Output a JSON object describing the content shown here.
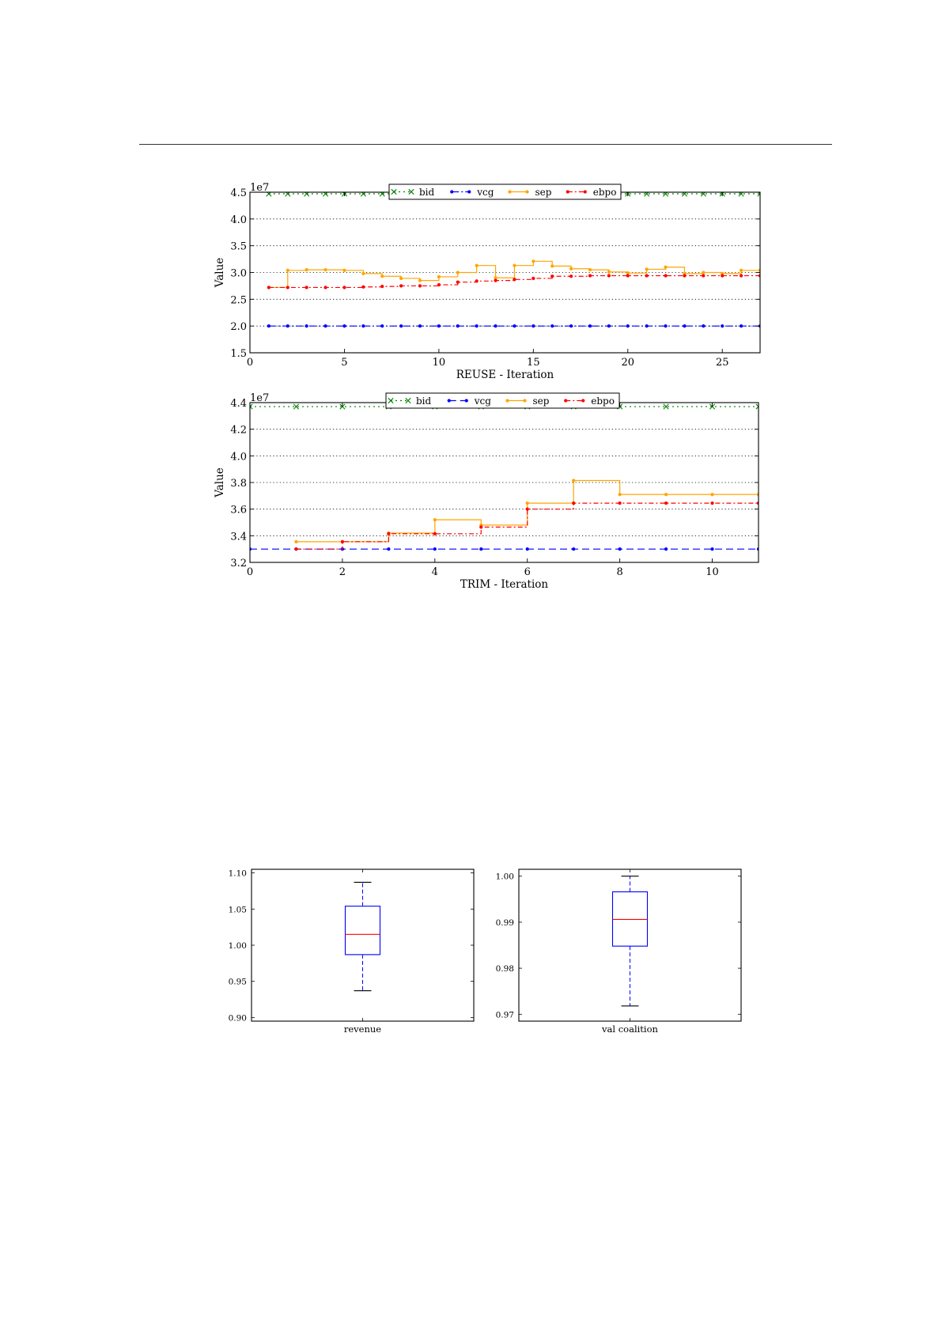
{
  "chart_data": [
    {
      "type": "line",
      "title": "",
      "xlabel": "REUSE - Iteration",
      "ylabel": "Value",
      "y_offset_label": "1e7",
      "xlim": [
        0,
        27
      ],
      "ylim": [
        1.5,
        4.5
      ],
      "xticks": [
        0,
        5,
        10,
        15,
        20,
        25
      ],
      "yticks": [
        1.5,
        2.0,
        2.5,
        3.0,
        3.5,
        4.0,
        4.5
      ],
      "grid": "horizontal-dotted",
      "legend": "top-center",
      "legend_labels": [
        "bid",
        "vcg",
        "sep",
        "ebpo"
      ],
      "x": [
        1,
        2,
        3,
        4,
        5,
        6,
        7,
        8,
        9,
        10,
        11,
        12,
        13,
        14,
        15,
        16,
        17,
        18,
        19,
        20,
        21,
        22,
        23,
        24,
        25,
        26,
        27
      ],
      "series": [
        {
          "name": "bid",
          "color": "#008000",
          "step": false,
          "dash": "2,4",
          "marker": "x",
          "values": [
            4.47,
            4.47,
            4.47,
            4.47,
            4.47,
            4.47,
            4.47,
            4.47,
            4.47,
            4.47,
            4.47,
            4.47,
            4.47,
            4.47,
            4.47,
            4.47,
            4.47,
            4.47,
            4.47,
            4.47,
            4.47,
            4.47,
            4.47,
            4.47,
            4.47,
            4.47,
            4.47
          ]
        },
        {
          "name": "vcg",
          "color": "#0000ff",
          "step": false,
          "dash": "9,3,2,3",
          "marker": "dot",
          "values": [
            2.0,
            2.0,
            2.0,
            2.0,
            2.0,
            2.0,
            2.0,
            2.0,
            2.0,
            2.0,
            2.0,
            2.0,
            2.0,
            2.0,
            2.0,
            2.0,
            2.0,
            2.0,
            2.0,
            2.0,
            2.0,
            2.0,
            2.0,
            2.0,
            2.0,
            2.0,
            2.0
          ]
        },
        {
          "name": "sep",
          "color": "#ffa500",
          "step": true,
          "dash": "",
          "marker": "dot",
          "values": [
            2.72,
            3.04,
            3.05,
            3.05,
            3.04,
            2.98,
            2.93,
            2.89,
            2.85,
            2.92,
            3.0,
            3.13,
            2.9,
            3.13,
            3.21,
            3.12,
            3.07,
            3.05,
            3.01,
            2.99,
            3.06,
            3.1,
            2.98,
            3.0,
            2.98,
            3.04,
            3.04
          ]
        },
        {
          "name": "ebpo",
          "color": "#ff0000",
          "step": true,
          "dash": "6,3,2,3",
          "marker": "dot",
          "values": [
            2.72,
            2.72,
            2.72,
            2.72,
            2.72,
            2.73,
            2.74,
            2.75,
            2.75,
            2.77,
            2.82,
            2.84,
            2.85,
            2.87,
            2.89,
            2.93,
            2.93,
            2.94,
            2.94,
            2.94,
            2.94,
            2.94,
            2.94,
            2.94,
            2.94,
            2.94,
            2.94
          ]
        }
      ]
    },
    {
      "type": "line",
      "title": "",
      "xlabel": "TRIM - Iteration",
      "ylabel": "Value",
      "y_offset_label": "1e7",
      "xlim": [
        0,
        11
      ],
      "ylim": [
        3.2,
        4.4
      ],
      "xticks": [
        0,
        2,
        4,
        6,
        8,
        10
      ],
      "yticks": [
        3.2,
        3.4,
        3.6,
        3.8,
        4.0,
        4.2,
        4.4
      ],
      "grid": "horizontal-dotted",
      "legend": "top-center",
      "legend_labels": [
        "bid",
        "vcg",
        "sep",
        "ebpo"
      ],
      "x": [
        0,
        1,
        2,
        3,
        4,
        5,
        6,
        7,
        8,
        9,
        10,
        11
      ],
      "series": [
        {
          "name": "bid",
          "color": "#008000",
          "step": false,
          "dash": "2,4",
          "marker": "x",
          "values": [
            4.37,
            4.37,
            4.37,
            4.37,
            4.37,
            4.37,
            4.37,
            4.37,
            4.37,
            4.37,
            4.37,
            4.37
          ]
        },
        {
          "name": "vcg",
          "color": "#0000ff",
          "step": false,
          "dash": "9,5",
          "marker": "dot",
          "values": [
            3.3,
            3.3,
            3.3,
            3.3,
            3.3,
            3.3,
            3.3,
            3.3,
            3.3,
            3.3,
            3.3,
            3.3
          ]
        },
        {
          "name": "sep",
          "color": "#ffa500",
          "step": true,
          "dash": "",
          "marker": "dot",
          "values": [
            null,
            3.355,
            3.355,
            3.42,
            3.52,
            3.48,
            3.645,
            3.815,
            3.71,
            3.71,
            3.71,
            3.71
          ]
        },
        {
          "name": "ebpo",
          "color": "#ff0000",
          "step": true,
          "dash": "6,3,2,3",
          "marker": "dot",
          "values": [
            null,
            3.3,
            3.355,
            3.415,
            3.415,
            3.465,
            3.6,
            3.645,
            3.645,
            3.645,
            3.645,
            3.645
          ]
        }
      ]
    },
    {
      "type": "box",
      "title": "",
      "xlabel": "revenue",
      "ylim": [
        0.895,
        1.105
      ],
      "yticks": [
        0.9,
        0.95,
        1.0,
        1.05,
        1.1
      ],
      "ytick_labels": [
        "0.90",
        "0.95",
        "1.00",
        "1.05",
        "1.10"
      ],
      "box": {
        "whisker_low": 0.937,
        "q1": 0.987,
        "median": 1.015,
        "q3": 1.054,
        "whisker_high": 1.087
      }
    },
    {
      "type": "box",
      "title": "",
      "xlabel": "val coalition",
      "ylim": [
        0.9685,
        1.0015
      ],
      "yticks": [
        0.97,
        0.98,
        0.99,
        1.0
      ],
      "ytick_labels": [
        "0.97",
        "0.98",
        "0.99",
        "1.00"
      ],
      "box": {
        "whisker_low": 0.9718,
        "q1": 0.9848,
        "median": 0.9906,
        "q3": 0.9966,
        "whisker_high": 1.0
      }
    }
  ]
}
